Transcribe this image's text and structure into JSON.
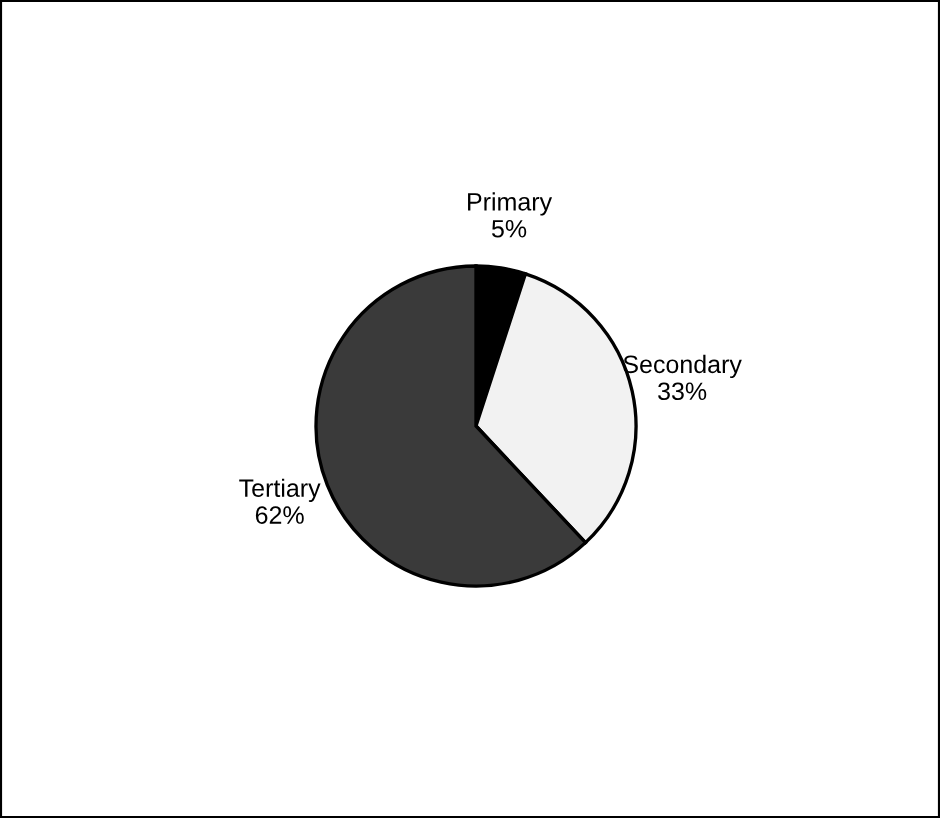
{
  "chart_data": {
    "type": "pie",
    "categories": [
      "Primary",
      "Secondary",
      "Tertiary"
    ],
    "values": [
      5,
      33,
      62
    ],
    "value_labels": [
      "5%",
      "33%",
      "62%"
    ],
    "colors": [
      "#000000",
      "#f2f2f2",
      "#3a3a3a"
    ],
    "legend": false
  }
}
